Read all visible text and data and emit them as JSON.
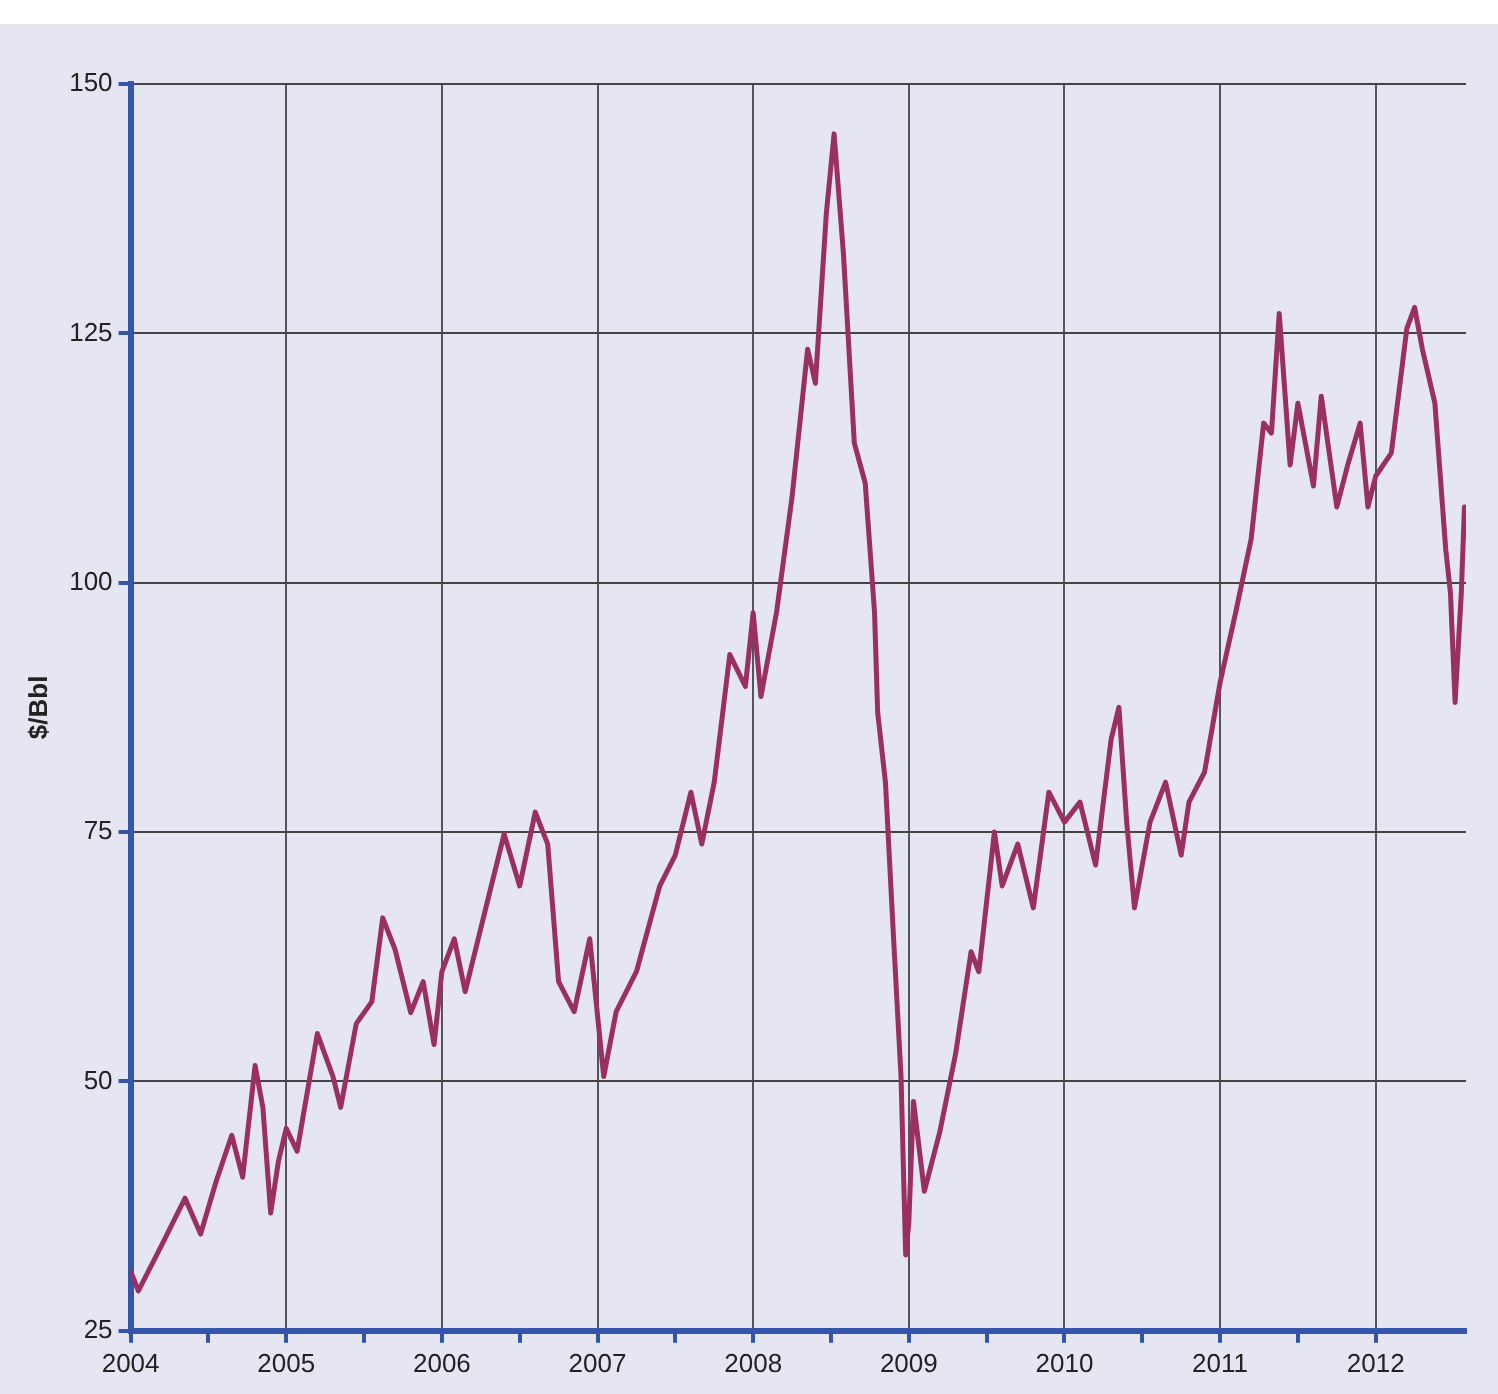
{
  "chart_data": {
    "type": "line",
    "ylabel": "$/Bbl",
    "xlim": [
      2004,
      2012.58
    ],
    "ylim": [
      25,
      150
    ],
    "xticks": [
      2004,
      {
        "value": 2004.5,
        "label": null
      },
      2005,
      {
        "value": 2005.5,
        "label": null
      },
      2006,
      {
        "value": 2006.5,
        "label": null
      },
      2007,
      {
        "value": 2007.5,
        "label": null
      },
      2008,
      {
        "value": 2008.5,
        "label": null
      },
      2009,
      {
        "value": 2009.5,
        "label": null
      },
      2010,
      {
        "value": 2010.5,
        "label": null
      },
      2011,
      {
        "value": 2011.5,
        "label": null
      },
      2012
    ],
    "yticks": [
      25,
      50,
      75,
      100,
      125,
      150
    ],
    "grid": true,
    "marker": "none",
    "line_style": "solid",
    "series": [
      {
        "color": "#9a2f62",
        "x": [
          2004,
          2004.05,
          2004.2,
          2004.35,
          2004.45,
          2004.55,
          2004.65,
          2004.72,
          2004.8,
          2004.85,
          2004.9,
          2004.95,
          2005,
          2005.07,
          2005.2,
          2005.3,
          2005.35,
          2005.45,
          2005.55,
          2005.62,
          2005.7,
          2005.8,
          2005.88,
          2005.95,
          2006,
          2006.08,
          2006.15,
          2006.3,
          2006.4,
          2006.5,
          2006.6,
          2006.68,
          2006.75,
          2006.85,
          2006.95,
          2007.04,
          2007.12,
          2007.25,
          2007.4,
          2007.5,
          2007.6,
          2007.67,
          2007.75,
          2007.85,
          2007.95,
          2008,
          2008.05,
          2008.15,
          2008.25,
          2008.35,
          2008.4,
          2008.47,
          2008.52,
          2008.58,
          2008.65,
          2008.72,
          2008.78,
          2008.8,
          2008.85,
          2008.9,
          2008.95,
          2008.98,
          2009,
          2009.03,
          2009.1,
          2009.2,
          2009.3,
          2009.4,
          2009.45,
          2009.55,
          2009.6,
          2009.7,
          2009.8,
          2009.9,
          2010,
          2010.1,
          2010.2,
          2010.3,
          2010.35,
          2010.4,
          2010.45,
          2010.55,
          2010.65,
          2010.75,
          2010.8,
          2010.9,
          2011,
          2011.1,
          2011.2,
          2011.28,
          2011.33,
          2011.38,
          2011.45,
          2011.5,
          2011.6,
          2011.65,
          2011.75,
          2011.82,
          2011.9,
          2011.95,
          2012,
          2012.1,
          2012.2,
          2012.25,
          2012.3,
          2012.38,
          2012.45,
          2012.48,
          2012.51,
          2012.55,
          2012.57,
          2012.58
        ],
        "values": [
          31,
          29,
          33.6,
          38.3,
          34.7,
          40,
          44.6,
          40.4,
          51.6,
          47.4,
          36.8,
          42,
          45.3,
          43,
          54.8,
          50.5,
          47.4,
          55.8,
          58,
          66.4,
          63.2,
          56.9,
          60,
          53.7,
          61,
          64.3,
          59,
          68.5,
          74.8,
          69.6,
          77,
          73.8,
          60,
          57,
          64.3,
          50.5,
          57,
          61,
          69.6,
          72.7,
          79,
          73.8,
          80,
          92.8,
          89.6,
          97,
          88.6,
          97,
          108.6,
          123.4,
          120,
          137,
          145,
          133,
          114,
          110,
          97,
          87,
          80,
          65,
          50.5,
          32.6,
          35.8,
          48,
          39,
          45,
          52.7,
          63,
          61,
          75,
          69.6,
          73.8,
          67.4,
          79,
          76,
          78,
          71.7,
          84.3,
          87.5,
          76,
          67.4,
          76,
          80,
          72.7,
          78,
          81,
          90,
          97,
          104.4,
          116,
          115,
          127,
          111.8,
          118,
          109.7,
          118.7,
          107.6,
          111.8,
          116,
          107.6,
          110.7,
          113,
          125.5,
          127.6,
          123.4,
          118,
          103.3,
          99,
          88,
          99,
          107.6,
          104.4
        ]
      }
    ]
  }
}
